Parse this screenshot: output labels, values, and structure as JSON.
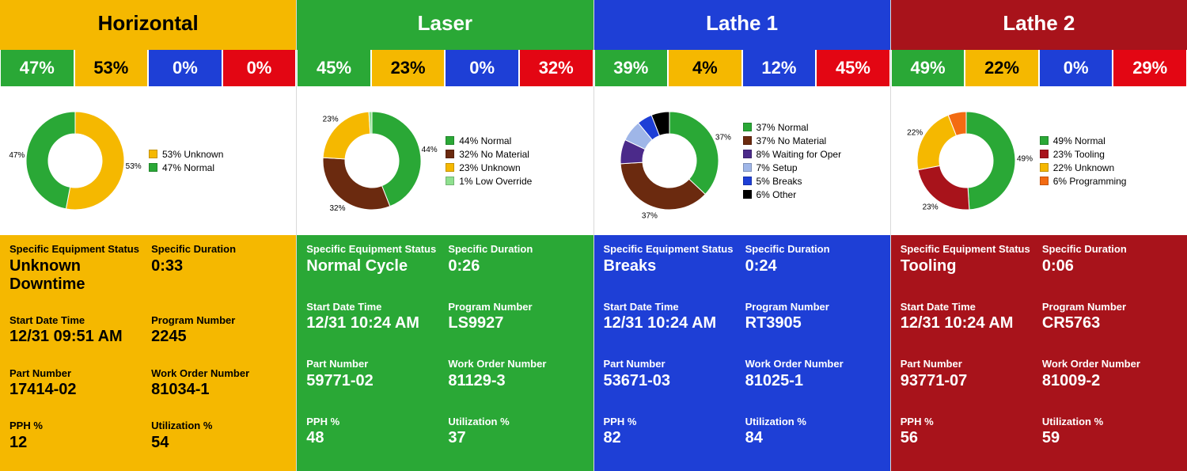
{
  "palette": {
    "green": "#2aa836",
    "yellow": "#f5b800",
    "blue": "#1e3fd6",
    "red": "#e30613",
    "darkred": "#a8131b",
    "brown": "#6b2a0f",
    "purple": "#4b2a8a",
    "lightblue": "#9fb6e8",
    "black": "#000000",
    "lightgreen": "#8fe08f",
    "orange": "#f36b12"
  },
  "labels": {
    "status": "Specific Equipment Status",
    "duration": "Specific Duration",
    "start": "Start Date Time",
    "program": "Program Number",
    "part": "Part Number",
    "workorder": "Work Order Number",
    "pph": "PPH %",
    "util": "Utilization %"
  },
  "panels": [
    {
      "title": "Horizontal",
      "title_bg": "#f5b800",
      "title_fg": "#000000",
      "details_bg": "#f5b800",
      "details_fg": "#000000",
      "pct_cells": [
        {
          "value": "47%",
          "bg": "#2aa836",
          "fg": "#ffffff"
        },
        {
          "value": "53%",
          "bg": "#f5b800",
          "fg": "#000000"
        },
        {
          "value": "0%",
          "bg": "#1e3fd6",
          "fg": "#ffffff"
        },
        {
          "value": "0%",
          "bg": "#e30613",
          "fg": "#ffffff"
        }
      ],
      "donut": {
        "slices": [
          {
            "label": "53% Unknown",
            "value": 53,
            "color": "#f5b800"
          },
          {
            "label": "47% Normal",
            "value": 47,
            "color": "#2aa836"
          }
        ],
        "inner_labels": [
          {
            "text": "47%",
            "slice": 1
          },
          {
            "text": "53%",
            "slice": 0
          }
        ]
      },
      "fields": {
        "status": "Unknown Downtime",
        "duration": "0:33",
        "start": "12/31 09:51 AM",
        "program": "2245",
        "part": "17414-02",
        "workorder": "81034-1",
        "pph": "12",
        "util": "54"
      }
    },
    {
      "title": "Laser",
      "title_bg": "#2aa836",
      "title_fg": "#ffffff",
      "details_bg": "#2aa836",
      "details_fg": "#ffffff",
      "pct_cells": [
        {
          "value": "45%",
          "bg": "#2aa836",
          "fg": "#ffffff"
        },
        {
          "value": "23%",
          "bg": "#f5b800",
          "fg": "#000000"
        },
        {
          "value": "0%",
          "bg": "#1e3fd6",
          "fg": "#ffffff"
        },
        {
          "value": "32%",
          "bg": "#e30613",
          "fg": "#ffffff"
        }
      ],
      "donut": {
        "slices": [
          {
            "label": "44% Normal",
            "value": 44,
            "color": "#2aa836"
          },
          {
            "label": "32% No Material",
            "value": 32,
            "color": "#6b2a0f"
          },
          {
            "label": "23% Unknown",
            "value": 23,
            "color": "#f5b800"
          },
          {
            "label": "1% Low Override",
            "value": 1,
            "color": "#8fe08f"
          }
        ],
        "inner_labels": [
          {
            "text": "44%",
            "slice": 0
          },
          {
            "text": "32%",
            "slice": 1
          },
          {
            "text": "23%",
            "slice": 2
          }
        ]
      },
      "fields": {
        "status": "Normal Cycle",
        "duration": "0:26",
        "start": "12/31 10:24 AM",
        "program": "LS9927",
        "part": "59771-02",
        "workorder": "81129-3",
        "pph": "48",
        "util": "37"
      }
    },
    {
      "title": "Lathe 1",
      "title_bg": "#1e3fd6",
      "title_fg": "#ffffff",
      "details_bg": "#1e3fd6",
      "details_fg": "#ffffff",
      "pct_cells": [
        {
          "value": "39%",
          "bg": "#2aa836",
          "fg": "#ffffff"
        },
        {
          "value": "4%",
          "bg": "#f5b800",
          "fg": "#000000"
        },
        {
          "value": "12%",
          "bg": "#1e3fd6",
          "fg": "#ffffff"
        },
        {
          "value": "45%",
          "bg": "#e30613",
          "fg": "#ffffff"
        }
      ],
      "donut": {
        "slices": [
          {
            "label": "37% Normal",
            "value": 37,
            "color": "#2aa836"
          },
          {
            "label": "37% No Material",
            "value": 37,
            "color": "#6b2a0f"
          },
          {
            "label": "8% Waiting for Oper",
            "value": 8,
            "color": "#4b2a8a"
          },
          {
            "label": "7% Setup",
            "value": 7,
            "color": "#9fb6e8"
          },
          {
            "label": "5% Breaks",
            "value": 5,
            "color": "#1e3fd6"
          },
          {
            "label": "6% Other",
            "value": 6,
            "color": "#000000"
          }
        ],
        "inner_labels": [
          {
            "text": "37%",
            "slice": 0
          },
          {
            "text": "37%",
            "slice": 1
          }
        ]
      },
      "fields": {
        "status": "Breaks",
        "duration": "0:24",
        "start": "12/31 10:24 AM",
        "program": "RT3905",
        "part": "53671-03",
        "workorder": "81025-1",
        "pph": "82",
        "util": "84"
      }
    },
    {
      "title": "Lathe 2",
      "title_bg": "#a8131b",
      "title_fg": "#ffffff",
      "details_bg": "#a8131b",
      "details_fg": "#ffffff",
      "pct_cells": [
        {
          "value": "49%",
          "bg": "#2aa836",
          "fg": "#ffffff"
        },
        {
          "value": "22%",
          "bg": "#f5b800",
          "fg": "#000000"
        },
        {
          "value": "0%",
          "bg": "#1e3fd6",
          "fg": "#ffffff"
        },
        {
          "value": "29%",
          "bg": "#e30613",
          "fg": "#ffffff"
        }
      ],
      "donut": {
        "slices": [
          {
            "label": "49% Normal",
            "value": 49,
            "color": "#2aa836"
          },
          {
            "label": "23% Tooling",
            "value": 23,
            "color": "#a8131b"
          },
          {
            "label": "22% Unknown",
            "value": 22,
            "color": "#f5b800"
          },
          {
            "label": "6% Programming",
            "value": 6,
            "color": "#f36b12"
          }
        ],
        "inner_labels": [
          {
            "text": "49%",
            "slice": 0
          },
          {
            "text": "23%",
            "slice": 1
          },
          {
            "text": "22%",
            "slice": 2
          }
        ]
      },
      "fields": {
        "status": "Tooling",
        "duration": "0:06",
        "start": "12/31 10:24 AM",
        "program": "CR5763",
        "part": "93771-07",
        "workorder": "81009-2",
        "pph": "56",
        "util": "59"
      }
    }
  ]
}
